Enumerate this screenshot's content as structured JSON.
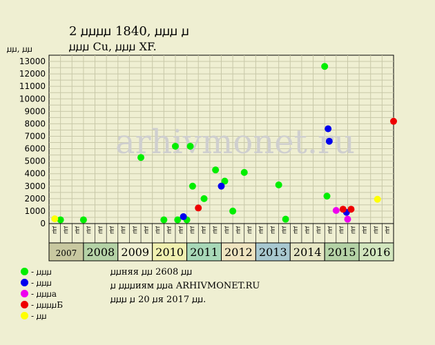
{
  "chart_data": {
    "type": "scatter",
    "title_line1": "2 ꙡꙡꙡꙡ 1840, ꙡꙡꙡ ꙡ",
    "title_line2": "ꙡꙡꙡ Cu, ꙡꙡꙡ XF.",
    "ylabel": "ꙡꙡ, ꙡꙡ",
    "ylim": [
      0,
      13500
    ],
    "y_ticks": [
      0,
      1000,
      2000,
      3000,
      4000,
      5000,
      6000,
      7000,
      8000,
      9000,
      10000,
      11000,
      12000,
      13000
    ],
    "grid": true,
    "x_years": [
      {
        "year": "2007",
        "color": "#C8C8A0",
        "small": true
      },
      {
        "year": "2008",
        "color": "#B4D2A6"
      },
      {
        "year": "2009",
        "color": "#EFEFD2"
      },
      {
        "year": "2010",
        "color": "#F0F0B0"
      },
      {
        "year": "2011",
        "color": "#A8D8B8"
      },
      {
        "year": "2012",
        "color": "#EFE4C0"
      },
      {
        "year": "2013",
        "color": "#A8C8D0"
      },
      {
        "year": "2014",
        "color": "#E6E6C4"
      },
      {
        "year": "2015",
        "color": "#B4D2A6"
      },
      {
        "year": "2016",
        "color": "#D2E6BE"
      }
    ],
    "x_month_labels": [
      "ꙡꙡ",
      "ꙡꙡ",
      "ꙡꙡ",
      "ꙡꙡ",
      "ꙡꙡ",
      "ꙡꙡ"
    ],
    "series": [
      {
        "name": "ꙡꙡꙡ",
        "color": "#00EE00",
        "points": [
          {
            "x": 1,
            "y": 300
          },
          {
            "x": 3,
            "y": 300
          },
          {
            "x": 8,
            "y": 5300
          },
          {
            "x": 10,
            "y": 300
          },
          {
            "x": 11,
            "y": 6200
          },
          {
            "x": 11.2,
            "y": 300
          },
          {
            "x": 12,
            "y": 300
          },
          {
            "x": 12.3,
            "y": 6200
          },
          {
            "x": 12.5,
            "y": 3000
          },
          {
            "x": 13.5,
            "y": 2000
          },
          {
            "x": 14.5,
            "y": 4300
          },
          {
            "x": 15.3,
            "y": 3400
          },
          {
            "x": 16,
            "y": 1000
          },
          {
            "x": 17,
            "y": 4100
          },
          {
            "x": 20,
            "y": 3100
          },
          {
            "x": 20.6,
            "y": 350
          },
          {
            "x": 24,
            "y": 12600
          },
          {
            "x": 24.2,
            "y": 2200
          }
        ]
      },
      {
        "name": "ꙡꙡꙡ",
        "color": "#0000EE",
        "points": [
          {
            "x": 11.7,
            "y": 550
          },
          {
            "x": 15,
            "y": 3000
          },
          {
            "x": 24.3,
            "y": 7600
          },
          {
            "x": 24.4,
            "y": 6600
          },
          {
            "x": 25.9,
            "y": 900
          }
        ]
      },
      {
        "name": "ꙡꙡꙡa",
        "color": "#EE00EE",
        "points": [
          {
            "x": 25,
            "y": 1050
          },
          {
            "x": 26,
            "y": 350
          }
        ]
      },
      {
        "name": "ꙡꙡꙡꙡБ",
        "color": "#EE0000",
        "points": [
          {
            "x": 13,
            "y": 1250
          },
          {
            "x": 25.6,
            "y": 1150
          },
          {
            "x": 26.3,
            "y": 1150
          },
          {
            "x": 30,
            "y": 8200
          }
        ]
      },
      {
        "name": "ꙡꙡ",
        "color": "#FFFF00",
        "points": [
          {
            "x": 0.5,
            "y": 380
          },
          {
            "x": 28.6,
            "y": 1950
          }
        ]
      }
    ]
  },
  "legend": [
    {
      "label": "- ꙡꙡꙡ",
      "color": "#00EE00"
    },
    {
      "label": "- ꙡꙡꙡ",
      "color": "#0000EE"
    },
    {
      "label": "- ꙡꙡꙡa",
      "color": "#EE00EE"
    },
    {
      "label": "- ꙡꙡꙡꙡБ",
      "color": "#EE0000"
    },
    {
      "label": "- ꙡꙡ",
      "color": "#FFFF00"
    }
  ],
  "notes": {
    "line1": "ꙡꙡняя ꙡꙡ 2608 ꙡꙡ",
    "line2": "ꙡ ꙡꙡꙡиям ꙡꙡa ARHIVMONET.RU",
    "line3": "ꙡꙡꙡ ꙡ 20 ꙡя 2017 ꙡꙡ."
  },
  "watermark": "arhivmonet.ru"
}
